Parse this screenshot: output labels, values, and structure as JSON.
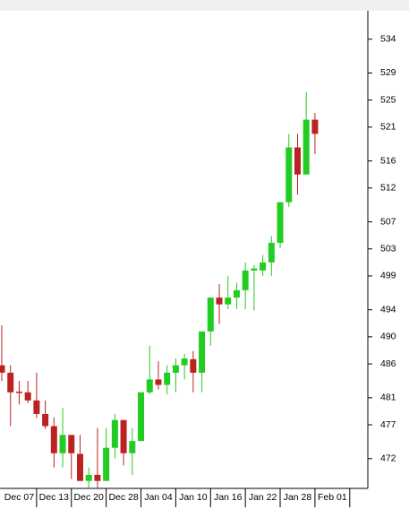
{
  "chart_data": {
    "type": "candlestick",
    "categories": [
      null,
      null,
      "Dec 07",
      null,
      null,
      null,
      "Dec 13",
      null,
      null,
      null,
      "Dec 20",
      null,
      null,
      null,
      "Dec 28",
      null,
      null,
      null,
      "Jan 04",
      null,
      null,
      null,
      "Jan 10",
      null,
      null,
      null,
      "Jan 16",
      null,
      null,
      null,
      "Jan 22",
      null,
      null,
      null,
      "Jan 28",
      null,
      null,
      null,
      "Feb 01"
    ],
    "open": [
      485.8,
      484.7,
      481.9,
      481.8,
      480.6,
      478.6,
      476.8,
      472.8,
      475.5,
      472.7,
      468.7,
      469.6,
      468.7,
      473.6,
      477.7,
      472.8,
      474.6,
      481.8,
      483.7,
      482.9,
      484.7,
      485.8,
      486.7,
      484.7,
      490.8,
      495.8,
      494.8,
      495.8,
      496.9,
      499.8,
      499.8,
      501.0,
      503.9,
      509.9,
      518.0,
      514.0,
      522.1,
      null,
      null
    ],
    "high": [
      491.7,
      485.8,
      483.5,
      483.5,
      484.7,
      480.6,
      478.1,
      479.5,
      475.5,
      475.5,
      470.7,
      476.5,
      476.5,
      478.6,
      477.7,
      476.5,
      481.8,
      488.7,
      486.4,
      485.8,
      486.8,
      487.5,
      487.9,
      490.8,
      495.8,
      497.8,
      499.0,
      498.0,
      501.0,
      500.6,
      502.1,
      504.9,
      509.9,
      520.0,
      520.0,
      526.2,
      523.1,
      null,
      null
    ],
    "low": [
      483.5,
      476.8,
      480.0,
      480.2,
      478.0,
      476.4,
      470.7,
      470.7,
      469.0,
      468.7,
      467.7,
      467.7,
      468.7,
      472.0,
      471.0,
      469.6,
      474.6,
      481.5,
      482.2,
      481.5,
      481.8,
      483.7,
      481.8,
      481.8,
      488.7,
      491.9,
      494.1,
      494.1,
      494.1,
      493.9,
      499.0,
      499.0,
      503.1,
      509.2,
      511.0,
      514.0,
      517.0,
      null,
      null
    ],
    "close": [
      484.7,
      481.8,
      481.7,
      480.6,
      478.6,
      476.8,
      472.8,
      475.5,
      472.8,
      468.7,
      469.6,
      468.7,
      473.6,
      477.7,
      472.8,
      474.6,
      481.8,
      483.7,
      482.9,
      484.7,
      485.8,
      486.8,
      484.7,
      490.8,
      495.8,
      494.8,
      495.8,
      496.9,
      499.8,
      500.1,
      501.0,
      503.9,
      509.9,
      518.0,
      514.0,
      522.1,
      520.0,
      null,
      null
    ],
    "up_color": "#22cc22",
    "down_color": "#bb2222",
    "ylim": [
      467.6,
      538.2
    ],
    "yticks": [
      472,
      477,
      481,
      486,
      490,
      494,
      499,
      503,
      507,
      512,
      516,
      521,
      525,
      529,
      534
    ],
    "y_axis_side": "right"
  }
}
